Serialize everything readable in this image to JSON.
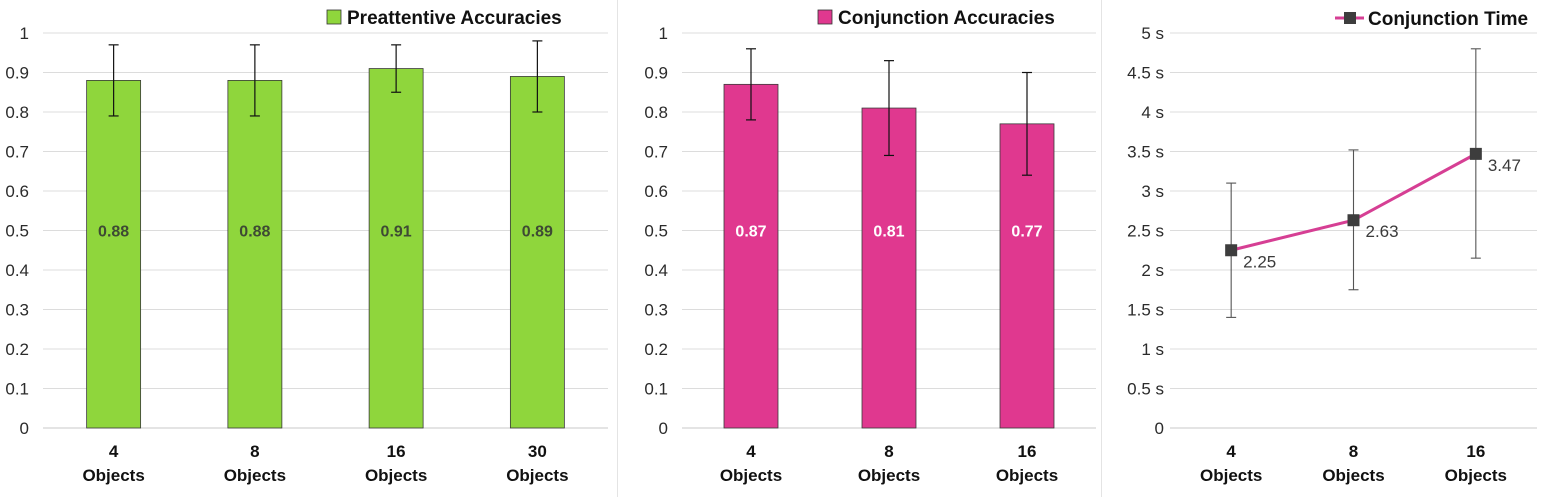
{
  "chart_data": [
    {
      "type": "bar",
      "legend": "Preattentive Accuracies",
      "legend_position": "top-right",
      "color": "#8fd63c",
      "label_color": "#3e4a34",
      "categories": [
        [
          "4",
          "Objects"
        ],
        [
          "8",
          "Objects"
        ],
        [
          "16",
          "Objects"
        ],
        [
          "30",
          "Objects"
        ]
      ],
      "values": [
        0.88,
        0.88,
        0.91,
        0.89
      ],
      "value_labels": [
        "0.88",
        "0.88",
        "0.91",
        "0.89"
      ],
      "error_low": [
        0.79,
        0.79,
        0.85,
        0.8
      ],
      "error_high": [
        0.97,
        0.97,
        0.97,
        0.98
      ],
      "ylim": [
        0,
        1
      ],
      "yticks": [
        "0",
        "0.1",
        "0.2",
        "0.3",
        "0.4",
        "0.5",
        "0.6",
        "0.7",
        "0.8",
        "0.9",
        "1"
      ],
      "grid": true
    },
    {
      "type": "bar",
      "legend": "Conjunction Accuracies",
      "legend_position": "top-right",
      "color": "#e0388f",
      "label_color": "#ffffff",
      "categories": [
        [
          "4",
          "Objects"
        ],
        [
          "8",
          "Objects"
        ],
        [
          "16",
          "Objects"
        ]
      ],
      "values": [
        0.87,
        0.81,
        0.77
      ],
      "value_labels": [
        "0.87",
        "0.81",
        "0.77"
      ],
      "error_low": [
        0.78,
        0.69,
        0.64
      ],
      "error_high": [
        0.96,
        0.93,
        0.9
      ],
      "ylim": [
        0,
        1
      ],
      "yticks": [
        "0",
        "0.1",
        "0.2",
        "0.3",
        "0.4",
        "0.5",
        "0.6",
        "0.7",
        "0.8",
        "0.9",
        "1"
      ],
      "grid": true
    },
    {
      "type": "line",
      "legend": "Conjunction Time",
      "legend_position": "top-right",
      "color": "#d63f94",
      "marker_color": "#3d3d3d",
      "categories": [
        [
          "4",
          "Objects"
        ],
        [
          "8",
          "Objects"
        ],
        [
          "16",
          "Objects"
        ]
      ],
      "values": [
        2.25,
        2.63,
        3.47
      ],
      "value_labels": [
        "2.25",
        "2.63",
        "3.47"
      ],
      "error_low": [
        1.4,
        1.75,
        2.15
      ],
      "error_high": [
        3.1,
        3.52,
        4.8
      ],
      "ylim": [
        0,
        5
      ],
      "yticks": [
        "0",
        "0.5 s",
        "1 s",
        "1.5 s",
        "2 s",
        "2.5 s",
        "3 s",
        "3.5 s",
        "4 s",
        "4.5 s",
        "5 s"
      ],
      "grid": true
    }
  ]
}
